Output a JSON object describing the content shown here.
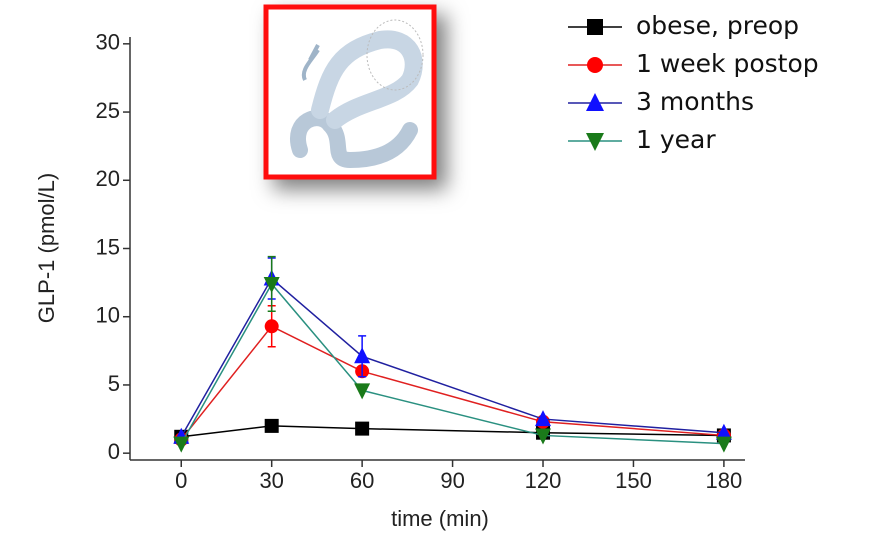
{
  "chart_data": {
    "type": "line",
    "x_label": "time (min)",
    "y_label": "GLP-1 (pmol/L)",
    "x": [
      0,
      30,
      60,
      120,
      180
    ],
    "xlim": [
      -17,
      187
    ],
    "xticks": [
      0,
      30,
      60,
      90,
      120,
      150,
      180
    ],
    "ylim": [
      -0.5,
      30.5
    ],
    "yticks": [
      0,
      5,
      10,
      15,
      20,
      25,
      30
    ],
    "legend": "top-right",
    "series": [
      {
        "name": "obese, preop",
        "color": "#000000",
        "line_color": "#000000",
        "marker": "square",
        "values": [
          1.2,
          2.0,
          1.8,
          1.5,
          1.3
        ],
        "errors": [
          null,
          null,
          null,
          null,
          null
        ]
      },
      {
        "name": "1 week postop",
        "color": "#ff0000",
        "line_color": "#e02020",
        "marker": "circle",
        "values": [
          1.0,
          9.3,
          6.0,
          2.3,
          1.3
        ],
        "errors": [
          null,
          1.5,
          null,
          null,
          null
        ]
      },
      {
        "name": "3 months",
        "color": "#1010ff",
        "line_color": "#2020a0",
        "marker": "triangle-up",
        "values": [
          1.2,
          12.8,
          7.1,
          2.5,
          1.5
        ],
        "errors": [
          null,
          1.5,
          1.5,
          null,
          null
        ]
      },
      {
        "name": "1 year",
        "color": "#1a7a1a",
        "line_color": "#2a9080",
        "marker": "triangle-down",
        "values": [
          0.7,
          12.4,
          4.6,
          1.3,
          0.7
        ],
        "errors": [
          null,
          2.0,
          null,
          null,
          null
        ]
      }
    ]
  }
}
